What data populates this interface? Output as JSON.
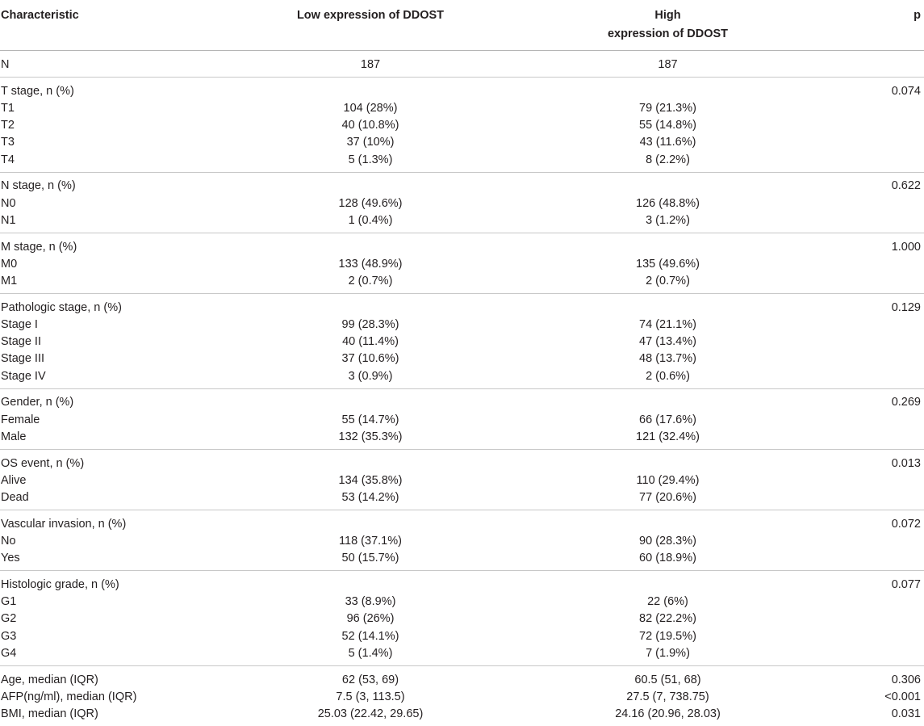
{
  "header": {
    "characteristic": "Characteristic",
    "low_line1": "Low expression of DDOST",
    "high_line1": "High",
    "high_line2": "expression of DDOST",
    "p": "p"
  },
  "groups": [
    {
      "rows": [
        {
          "label": "N",
          "low": "187",
          "high": "187",
          "p": ""
        }
      ]
    },
    {
      "rows": [
        {
          "label": "T stage, n (%)",
          "low": "",
          "high": "",
          "p": "0.074"
        },
        {
          "label": "T1",
          "low": "104 (28%)",
          "high": "79 (21.3%)",
          "p": ""
        },
        {
          "label": "T2",
          "low": "40 (10.8%)",
          "high": "55 (14.8%)",
          "p": ""
        },
        {
          "label": "T3",
          "low": "37 (10%)",
          "high": "43 (11.6%)",
          "p": ""
        },
        {
          "label": "T4",
          "low": "5 (1.3%)",
          "high": "8 (2.2%)",
          "p": ""
        }
      ]
    },
    {
      "rows": [
        {
          "label": "N stage, n (%)",
          "low": "",
          "high": "",
          "p": "0.622"
        },
        {
          "label": "N0",
          "low": "128 (49.6%)",
          "high": "126 (48.8%)",
          "p": ""
        },
        {
          "label": "N1",
          "low": "1 (0.4%)",
          "high": "3 (1.2%)",
          "p": ""
        }
      ]
    },
    {
      "rows": [
        {
          "label": "M stage, n (%)",
          "low": "",
          "high": "",
          "p": "1.000"
        },
        {
          "label": "M0",
          "low": "133 (48.9%)",
          "high": "135 (49.6%)",
          "p": ""
        },
        {
          "label": "M1",
          "low": "2 (0.7%)",
          "high": "2 (0.7%)",
          "p": ""
        }
      ]
    },
    {
      "rows": [
        {
          "label": "Pathologic stage, n (%)",
          "low": "",
          "high": "",
          "p": "0.129"
        },
        {
          "label": "Stage I",
          "low": "99 (28.3%)",
          "high": "74 (21.1%)",
          "p": ""
        },
        {
          "label": "Stage II",
          "low": "40 (11.4%)",
          "high": "47 (13.4%)",
          "p": ""
        },
        {
          "label": "Stage III",
          "low": "37 (10.6%)",
          "high": "48 (13.7%)",
          "p": ""
        },
        {
          "label": "Stage IV",
          "low": "3 (0.9%)",
          "high": "2 (0.6%)",
          "p": ""
        }
      ]
    },
    {
      "rows": [
        {
          "label": "Gender, n (%)",
          "low": "",
          "high": "",
          "p": "0.269"
        },
        {
          "label": "Female",
          "low": "55 (14.7%)",
          "high": "66 (17.6%)",
          "p": ""
        },
        {
          "label": "Male",
          "low": "132 (35.3%)",
          "high": "121 (32.4%)",
          "p": ""
        }
      ]
    },
    {
      "rows": [
        {
          "label": "OS event, n (%)",
          "low": "",
          "high": "",
          "p": "0.013"
        },
        {
          "label": "Alive",
          "low": "134 (35.8%)",
          "high": "110 (29.4%)",
          "p": ""
        },
        {
          "label": "Dead",
          "low": "53 (14.2%)",
          "high": "77 (20.6%)",
          "p": ""
        }
      ]
    },
    {
      "rows": [
        {
          "label": "Vascular invasion, n (%)",
          "low": "",
          "high": "",
          "p": "0.072"
        },
        {
          "label": "No",
          "low": "118 (37.1%)",
          "high": "90 (28.3%)",
          "p": ""
        },
        {
          "label": "Yes",
          "low": "50 (15.7%)",
          "high": "60 (18.9%)",
          "p": ""
        }
      ]
    },
    {
      "rows": [
        {
          "label": "Histologic grade, n (%)",
          "low": "",
          "high": "",
          "p": "0.077"
        },
        {
          "label": "G1",
          "low": "33 (8.9%)",
          "high": "22 (6%)",
          "p": ""
        },
        {
          "label": "G2",
          "low": "96 (26%)",
          "high": "82 (22.2%)",
          "p": ""
        },
        {
          "label": "G3",
          "low": "52 (14.1%)",
          "high": "72 (19.5%)",
          "p": ""
        },
        {
          "label": "G4",
          "low": "5 (1.4%)",
          "high": "7 (1.9%)",
          "p": ""
        }
      ]
    },
    {
      "rows": [
        {
          "label": "Age, median (IQR)",
          "low": "62 (53, 69)",
          "high": "60.5 (51, 68)",
          "p": "0.306"
        },
        {
          "label": "AFP(ng/ml), median (IQR)",
          "low": "7.5 (3, 113.5)",
          "high": "27.5 (7, 738.75)",
          "p": "<0.001"
        },
        {
          "label": "BMI, median (IQR)",
          "low": "25.03 (22.42, 29.65)",
          "high": "24.16 (20.96, 28.03)",
          "p": "0.031"
        }
      ]
    }
  ]
}
